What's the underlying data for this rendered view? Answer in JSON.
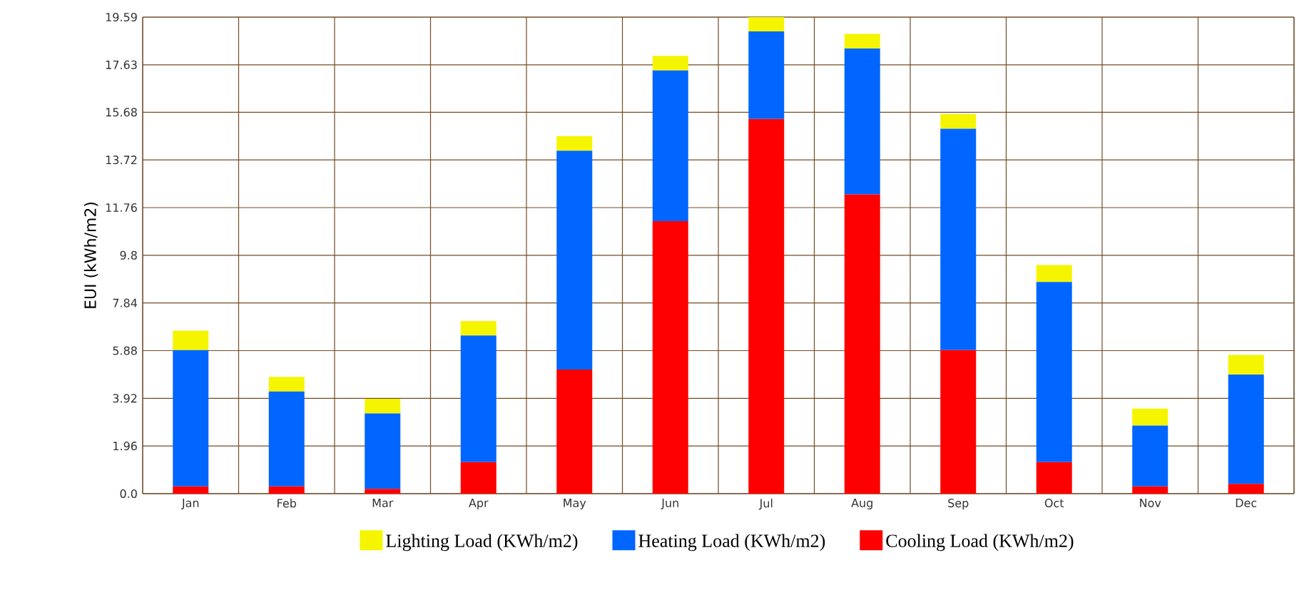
{
  "chart_data": {
    "type": "bar",
    "stacked": true,
    "ylabel": "EUI (kWh/m2)",
    "categories": [
      "Jan",
      "Feb",
      "Mar",
      "Apr",
      "May",
      "Jun",
      "Jul",
      "Aug",
      "Sep",
      "Oct",
      "Nov",
      "Dec"
    ],
    "series": [
      {
        "name": "Cooling Load (KWh/m2)",
        "color": "#ff0000",
        "values": [
          0.3,
          0.3,
          0.2,
          1.3,
          5.1,
          11.2,
          15.4,
          12.3,
          5.9,
          1.3,
          0.3,
          0.4
        ]
      },
      {
        "name": "Heating Load (KWh/m2)",
        "color": "#0066ff",
        "values": [
          5.6,
          3.9,
          3.1,
          5.2,
          9.0,
          6.2,
          3.6,
          6.0,
          9.1,
          7.4,
          2.5,
          4.5
        ]
      },
      {
        "name": "Lighting Load (KWh/m2)",
        "color": "#f5f500",
        "values": [
          0.8,
          0.6,
          0.6,
          0.6,
          0.6,
          0.6,
          0.6,
          0.6,
          0.6,
          0.7,
          0.7,
          0.8
        ]
      }
    ],
    "ylim": [
      0,
      19.59
    ],
    "yticks": [
      {
        "value": 0,
        "label": "0.0"
      },
      1.96,
      3.92,
      5.88,
      7.84,
      9.8,
      11.76,
      13.72,
      15.68,
      17.63,
      19.59
    ],
    "grid": true,
    "legend": "bottom"
  }
}
